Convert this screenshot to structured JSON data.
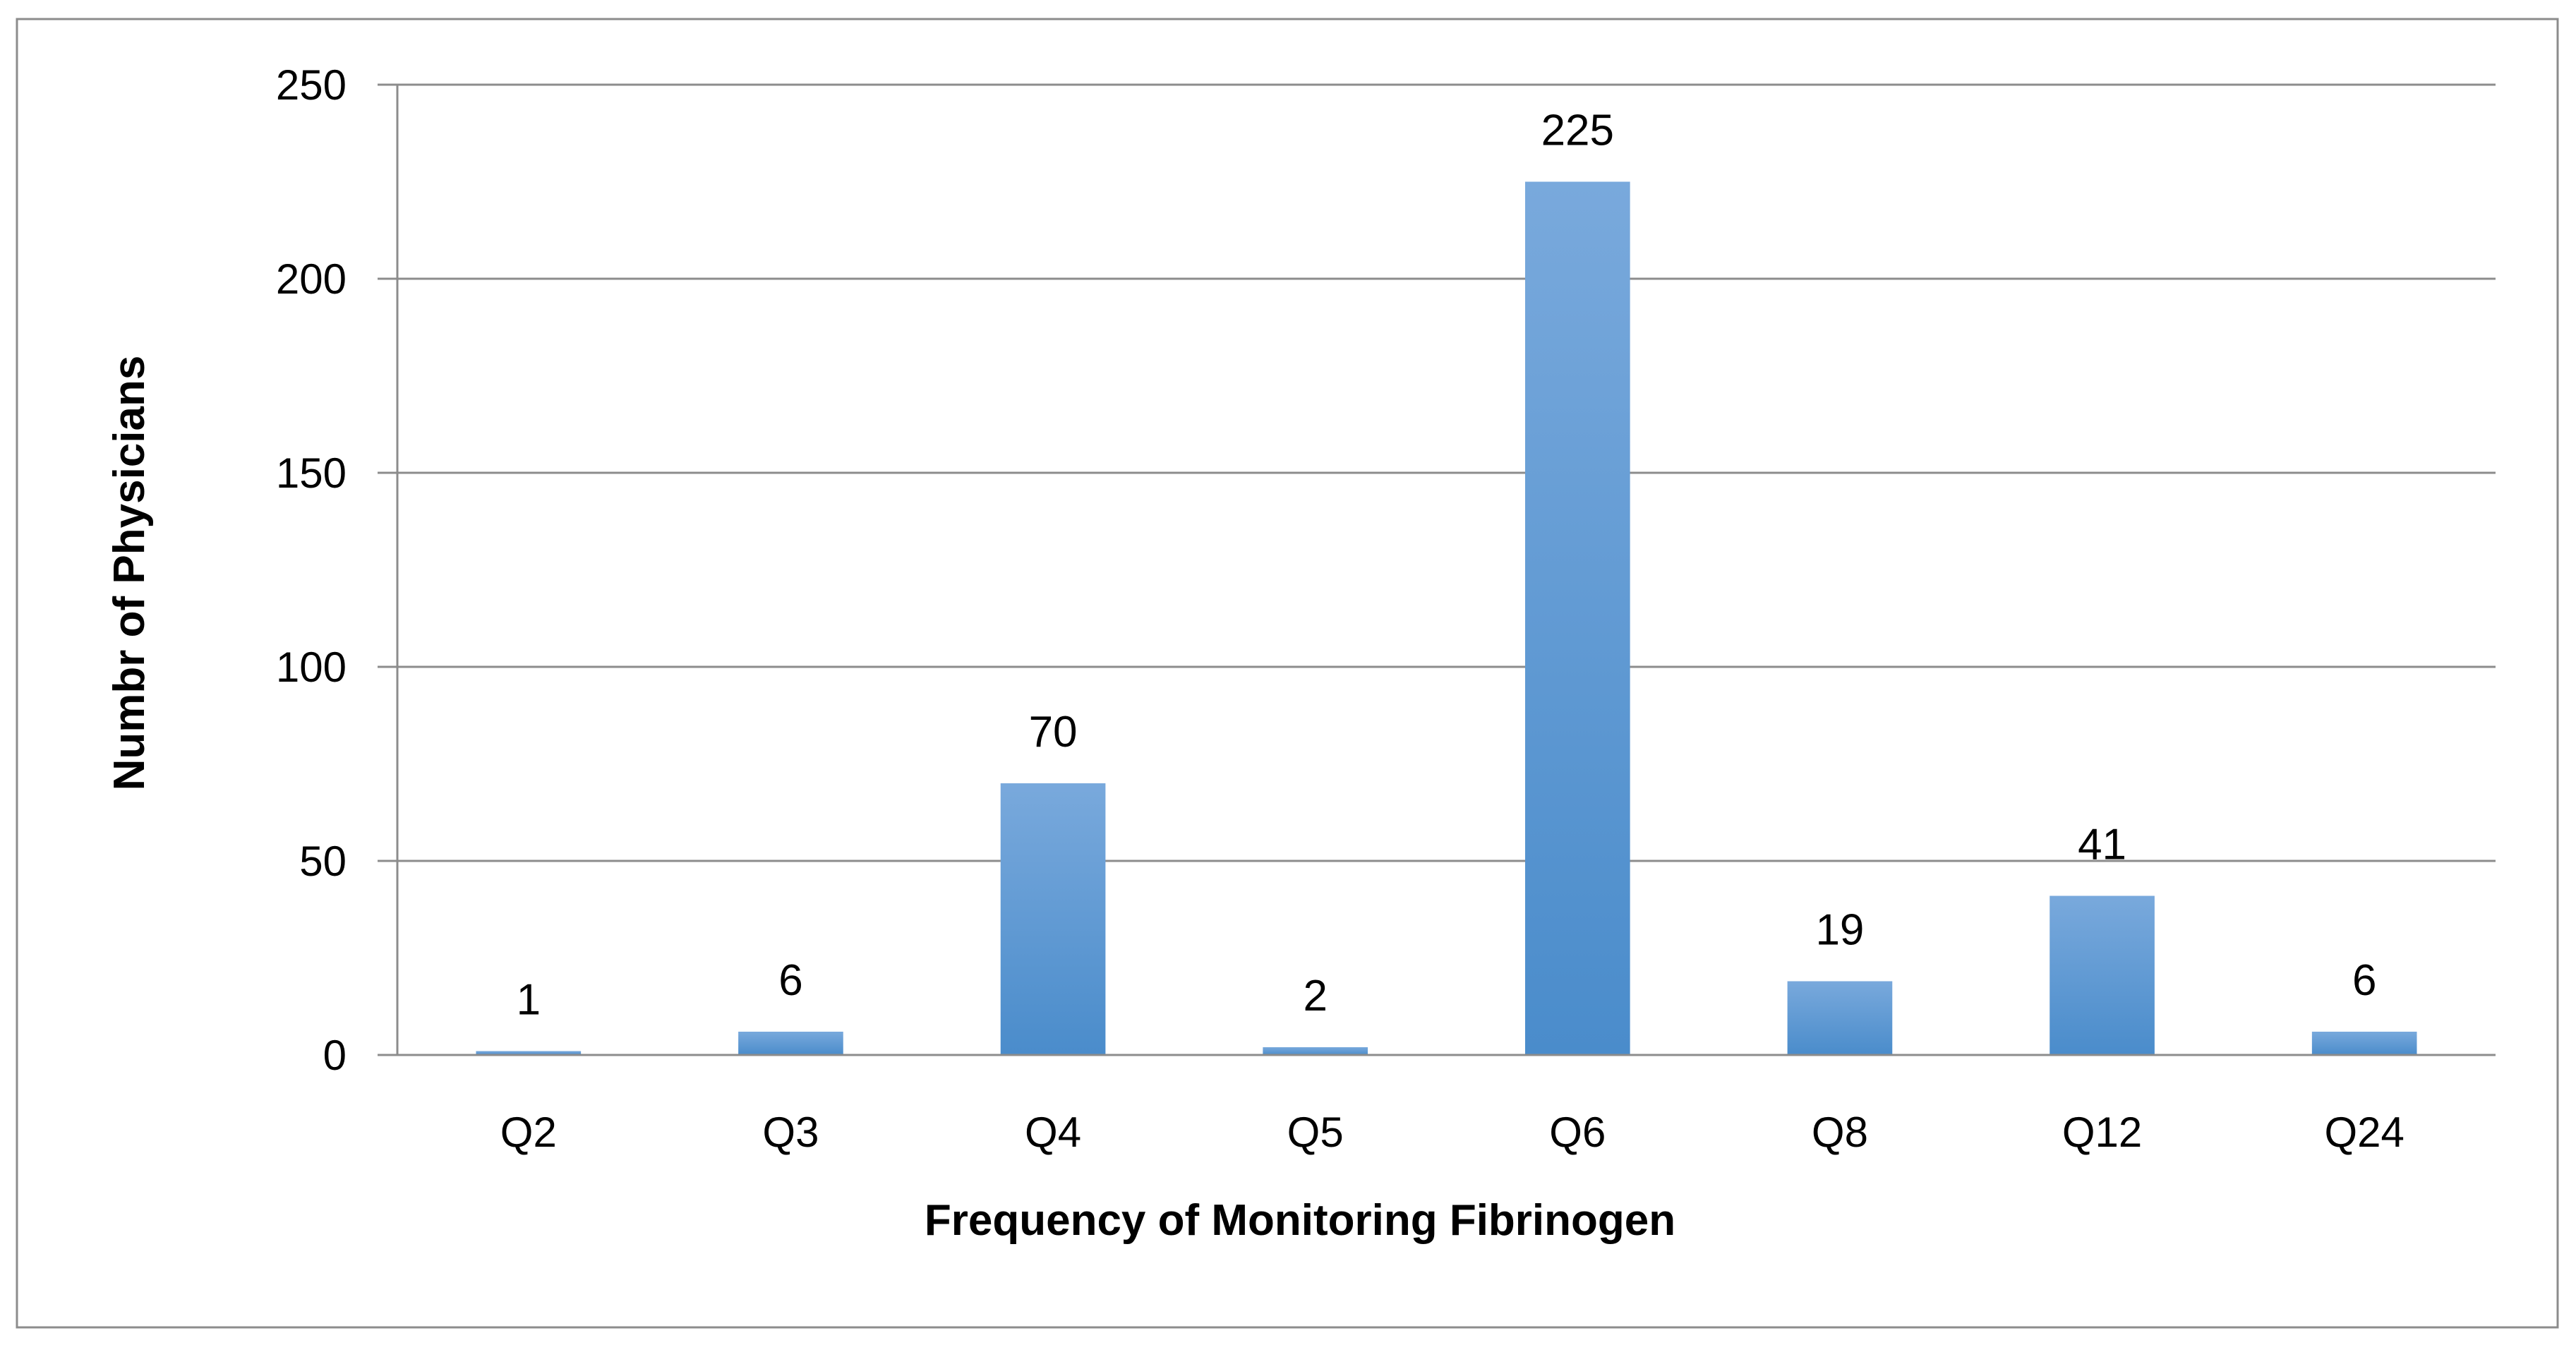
{
  "chart_data": {
    "type": "bar",
    "title": "",
    "xlabel": "Frequency of Monitoring Fibrinogen",
    "ylabel": "Numbr of Physicians",
    "categories": [
      "Q2",
      "Q3",
      "Q4",
      "Q5",
      "Q6",
      "Q8",
      "Q12",
      "Q24"
    ],
    "series": [
      {
        "values": [
          1,
          6,
          70,
          2,
          225,
          19,
          41,
          6
        ]
      }
    ],
    "data_labels": [
      "1",
      "6",
      "70",
      "2",
      "225",
      "19",
      "41",
      "6"
    ],
    "ylim": [
      0,
      250
    ],
    "yticks": [
      0,
      50,
      100,
      150,
      200,
      250
    ],
    "ytick_labels": [
      "0",
      "50",
      "100",
      "150",
      "200",
      "250"
    ],
    "grid": "horizontal",
    "legend": "none",
    "colors": {
      "bar_top": "#79A9DC",
      "bar_bottom": "#4A8CCB",
      "grid": "#8C8C8C",
      "axis": "#8C8C8C",
      "frame": "#8C8C8C"
    }
  }
}
